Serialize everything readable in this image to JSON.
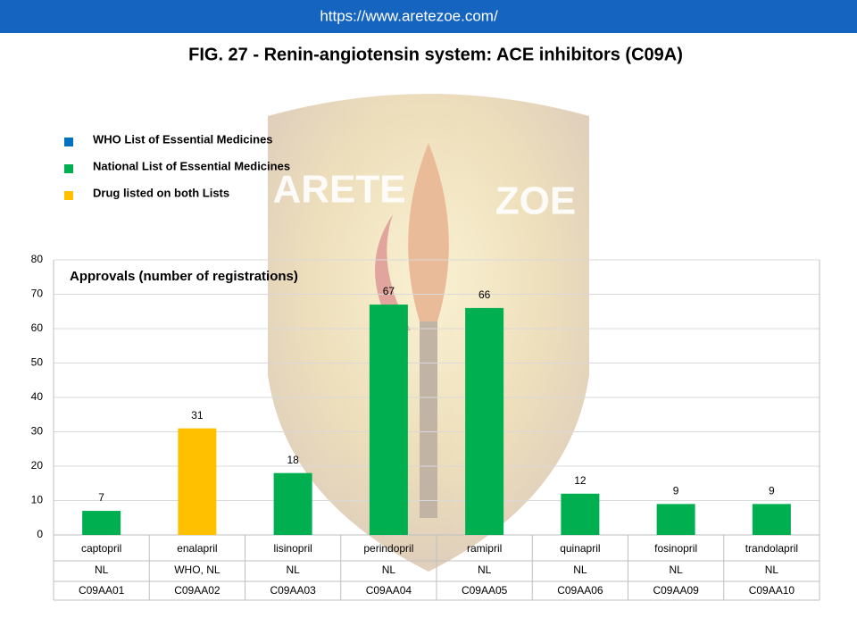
{
  "header": {
    "url": "https://www.aretezoe.com/"
  },
  "watermark": [
    "ARETE",
    "ZOE"
  ],
  "chart_data": {
    "type": "bar",
    "title": "FIG. 27 - Renin-angiotensin system: ACE inhibitors (C09A)",
    "subtitle": "Approvals (number of registrations)",
    "legend": [
      {
        "name": "WHO List of Essential Medicines",
        "color": "#0070c0"
      },
      {
        "name": "National List of Essential Medicines",
        "color": "#00b050"
      },
      {
        "name": "Drug listed on both Lists",
        "color": "#ffc000"
      }
    ],
    "categories": [
      "captopril",
      "enalapril",
      "lisinopril",
      "perindopril",
      "ramipril",
      "quinapril",
      "fosinopril",
      "trandolapril"
    ],
    "values": [
      7,
      31,
      18,
      67,
      66,
      12,
      9,
      9
    ],
    "colors": [
      "#00b050",
      "#ffc000",
      "#00b050",
      "#00b050",
      "#00b050",
      "#00b050",
      "#00b050",
      "#00b050"
    ],
    "lists": [
      "NL",
      "WHO, NL",
      "NL",
      "NL",
      "NL",
      "NL",
      "NL",
      "NL"
    ],
    "codes": [
      "C09AA01",
      "C09AA02",
      "C09AA03",
      "C09AA04",
      "C09AA05",
      "C09AA06",
      "C09AA09",
      "C09AA10"
    ],
    "ylim": [
      0,
      80
    ],
    "yticks": [
      0,
      10,
      20,
      30,
      40,
      50,
      60,
      70,
      80
    ],
    "grid": true
  }
}
